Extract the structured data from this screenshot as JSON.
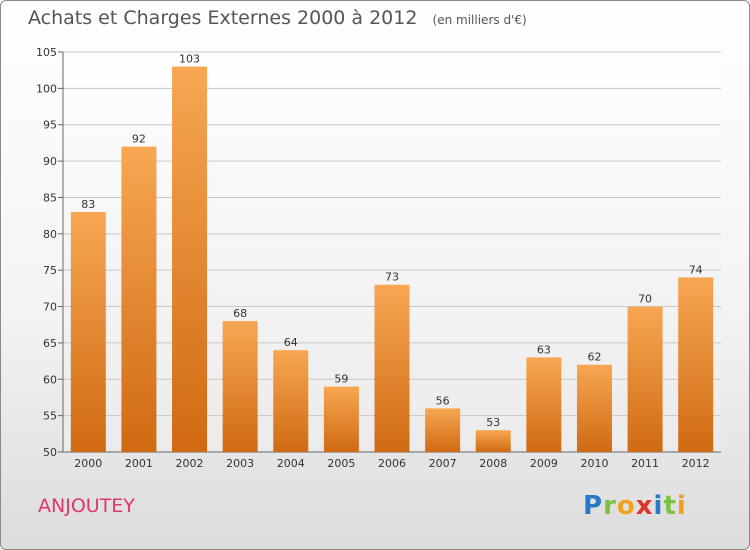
{
  "title": "Achats et Charges Externes 2000 à 2012",
  "unit_note": "(en milliers d'€)",
  "place_name": "ANJOUTEY",
  "logo": {
    "letters": [
      {
        "ch": "P",
        "color": "#2a78c8"
      },
      {
        "ch": "r",
        "color": "#7cc242"
      },
      {
        "ch": "o",
        "color": "#f3a01f"
      },
      {
        "ch": "x",
        "color": "#e2342b"
      },
      {
        "ch": "i",
        "color": "#2a78c8"
      },
      {
        "ch": "t",
        "color": "#7cc242"
      },
      {
        "ch": "i",
        "color": "#f3a01f"
      }
    ]
  },
  "chart_data": {
    "type": "bar",
    "title": "Achats et Charges Externes 2000 à 2012",
    "subtitle": "(en milliers d'€)",
    "categories": [
      "2000",
      "2001",
      "2002",
      "2003",
      "2004",
      "2005",
      "2006",
      "2007",
      "2008",
      "2009",
      "2010",
      "2011",
      "2012"
    ],
    "values": [
      83,
      92,
      103,
      68,
      64,
      59,
      73,
      56,
      53,
      63,
      62,
      70,
      74
    ],
    "ylim": [
      50,
      105
    ],
    "yticks": [
      50,
      55,
      60,
      65,
      70,
      75,
      80,
      85,
      90,
      95,
      100,
      105
    ],
    "grid": true,
    "bar_color_top": "#f7a752",
    "bar_color_bottom": "#d06a12"
  }
}
